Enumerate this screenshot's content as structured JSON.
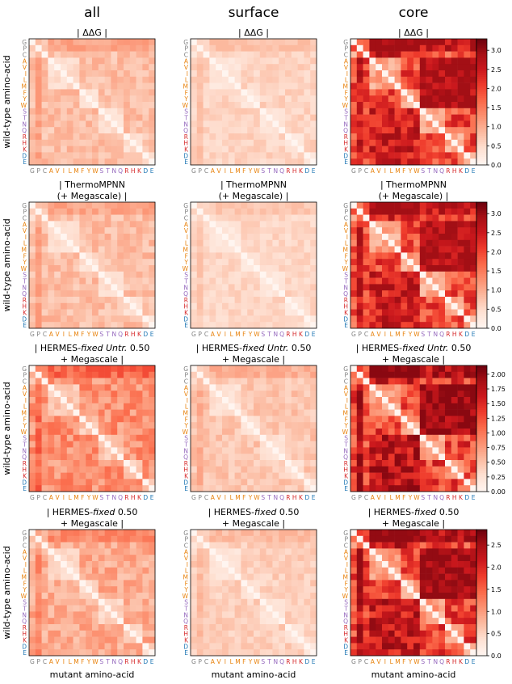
{
  "column_titles": [
    "all",
    "surface",
    "core"
  ],
  "y_axis_label": "wild-type amino-acid",
  "x_axis_label": "mutant amino-acid",
  "amino_acids": [
    "G",
    "P",
    "C",
    "A",
    "V",
    "I",
    "L",
    "M",
    "F",
    "Y",
    "W",
    "S",
    "T",
    "N",
    "Q",
    "R",
    "H",
    "K",
    "D",
    "E"
  ],
  "amino_acid_colors": {
    "G": "#808080",
    "P": "#808080",
    "C": "#808080",
    "A": "#e8820c",
    "V": "#e8820c",
    "I": "#e8820c",
    "L": "#e8820c",
    "M": "#e8820c",
    "F": "#e8820c",
    "Y": "#e8820c",
    "W": "#e8820c",
    "S": "#9467bd",
    "T": "#9467bd",
    "N": "#9467bd",
    "Q": "#9467bd",
    "R": "#d62728",
    "H": "#d62728",
    "K": "#d62728",
    "D": "#1f77b4",
    "E": "#1f77b4"
  },
  "colormap": [
    "#fff5f0",
    "#fee0d2",
    "#fcbba1",
    "#fc9272",
    "#fb6a4a",
    "#ef3b2c",
    "#cb181d",
    "#a50f15",
    "#67000d"
  ],
  "chart_data": {
    "type": "heatmap",
    "rows": [
      {
        "title_lines": [
          "| ΔΔG |"
        ],
        "colorbar": {
          "vmin": 0,
          "vmax": 3.3,
          "ticks": [
            "0.0",
            "0.5",
            "1.0",
            "1.5",
            "2.0",
            "2.5",
            "3.0"
          ]
        },
        "panel_max": {
          "all": 1.2,
          "surface": 0.85,
          "core": 2.9
        }
      },
      {
        "title_lines": [
          "| ThermoMPNN",
          "(+ Megascale) |"
        ],
        "colorbar": {
          "vmin": 0,
          "vmax": 3.3,
          "ticks": [
            "0.0",
            "0.5",
            "1.0",
            "1.5",
            "2.0",
            "2.5",
            "3.0"
          ]
        },
        "panel_max": {
          "all": 1.2,
          "surface": 0.8,
          "core": 2.9
        }
      },
      {
        "title_lines": [
          "| HERMES-fixed Untr. 0.50",
          "+ Megascale |"
        ],
        "colorbar": {
          "vmin": 0,
          "vmax": 2.15,
          "ticks": [
            "0.00",
            "0.25",
            "0.50",
            "0.75",
            "1.00",
            "1.25",
            "1.50",
            "1.75",
            "2.00"
          ]
        },
        "panel_max": {
          "all": 1.25,
          "surface": 0.7,
          "core": 2.0
        }
      },
      {
        "title_lines": [
          "| HERMES-fixed 0.50",
          "+ Megascale |"
        ],
        "colorbar": {
          "vmin": 0,
          "vmax": 2.85,
          "ticks": [
            "0.0",
            "0.5",
            "1.0",
            "1.5",
            "2.0",
            "2.5"
          ]
        },
        "panel_max": {
          "all": 1.3,
          "surface": 0.8,
          "core": 2.6
        }
      }
    ]
  }
}
